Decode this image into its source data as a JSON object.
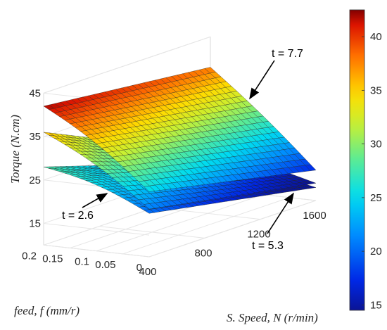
{
  "chart_data": {
    "type": "surface",
    "title": "",
    "xlabel": "S. Speed, N (r/min)",
    "ylabel": "feed, f (mm/r)",
    "zlabel": "Torque (N.cm)",
    "x_ticks": [
      "400",
      "800",
      "1200",
      "1600"
    ],
    "y_ticks": [
      "0",
      "0.05",
      "0.1",
      "0.15",
      "0.2"
    ],
    "z_ticks": [
      "15",
      "25",
      "35",
      "45"
    ],
    "xlim": [
      400,
      1600
    ],
    "ylim": [
      0,
      0.2
    ],
    "zlim": [
      10,
      45
    ],
    "colorbar": {
      "min": 14.5,
      "max": 42.5,
      "ticks": [
        "15",
        "20",
        "25",
        "30",
        "35",
        "40"
      ],
      "colormap": "parula"
    },
    "series": [
      {
        "name": "t = 2.6",
        "corners": {
          "n400_f0": 20,
          "n1600_f0": 13,
          "n400_f02": 28,
          "n1600_f02": 16
        }
      },
      {
        "name": "t = 5.3",
        "corners": {
          "n400_f0": 21,
          "n1600_f0": 14,
          "n400_f02": 36,
          "n1600_f02": 18.5
        }
      },
      {
        "name": "t = 7.7",
        "corners": {
          "n400_f0": 25,
          "n1600_f0": 17,
          "n400_f02": 42,
          "n1600_f02": 38
        }
      }
    ],
    "annotations": [
      {
        "text": "t = 7.7",
        "target": "t = 7.7"
      },
      {
        "text": "t = 2.6",
        "target": "t = 2.6"
      },
      {
        "text": "t = 5.3",
        "target": "t = 5.3"
      }
    ]
  }
}
